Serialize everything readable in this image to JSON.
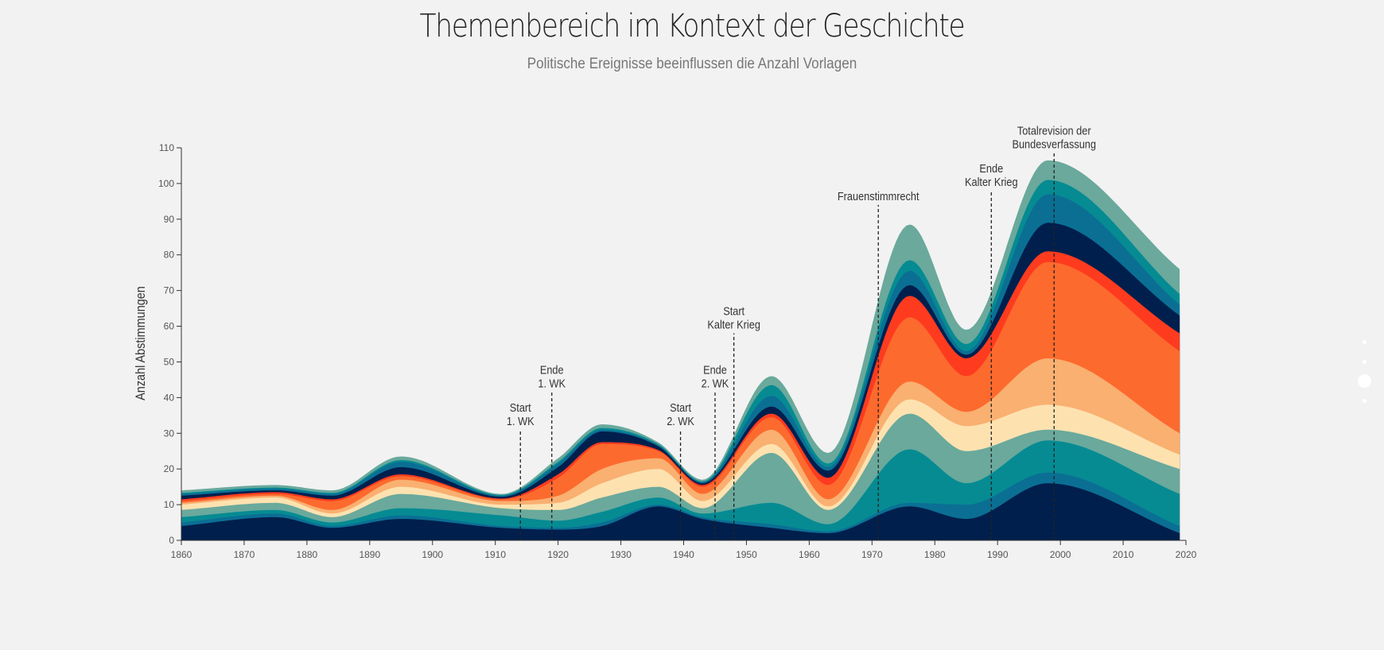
{
  "title": "Themenbereich im Kontext der Geschichte",
  "subtitle": "Politische Ereignisse beeinflussen die Anzahl Vorlagen",
  "chart_data": {
    "type": "area",
    "stacked": true,
    "smooth": true,
    "xlabel": "",
    "ylabel": "Anzahl Abstimmungen",
    "xlim": [
      1860,
      2020
    ],
    "ylim": [
      0,
      110
    ],
    "x_ticks": [
      1860,
      1870,
      1880,
      1890,
      1900,
      1910,
      1920,
      1930,
      1940,
      1950,
      1960,
      1970,
      1980,
      1990,
      2000,
      2010,
      2020
    ],
    "y_ticks": [
      0,
      10,
      20,
      30,
      40,
      50,
      60,
      70,
      80,
      90,
      100,
      110
    ],
    "grid": false,
    "legend": "none",
    "x": [
      1860,
      1875,
      1884,
      1895,
      1911,
      1920,
      1927,
      1936,
      1943,
      1954,
      1963,
      1976,
      1985,
      1998,
      2019
    ],
    "series": [
      {
        "color": "#001f4d",
        "values": [
          4,
          6.5,
          3.5,
          6,
          3.5,
          3,
          4,
          9.5,
          6,
          3.5,
          2,
          9.5,
          6,
          16,
          2
        ]
      },
      {
        "color": "#0b6f94",
        "values": [
          1,
          1,
          0.5,
          1,
          0.5,
          0.5,
          1,
          0.5,
          0.5,
          1,
          0.5,
          1,
          4,
          3,
          2
        ]
      },
      {
        "color": "#068b93",
        "values": [
          1.5,
          1,
          1,
          2,
          3,
          2,
          3,
          2,
          1,
          6,
          2,
          15,
          6,
          9,
          9
        ]
      },
      {
        "color": "#6aa99c",
        "values": [
          2,
          2,
          1.5,
          4,
          2,
          3,
          4,
          3,
          1.5,
          14,
          4,
          10,
          9,
          3,
          7
        ]
      },
      {
        "color": "#fde2b0",
        "values": [
          1.5,
          1.5,
          1,
          2,
          1,
          2,
          4,
          5,
          2,
          2.5,
          1,
          4,
          7,
          7,
          4
        ]
      },
      {
        "color": "#f9b071",
        "values": [
          0.5,
          0.5,
          1,
          2,
          1,
          2,
          4,
          3,
          2,
          4,
          2,
          5,
          4,
          13,
          6
        ]
      },
      {
        "color": "#fd6a2e",
        "values": [
          0.5,
          0.5,
          2.5,
          1,
          0.5,
          5,
          7,
          2,
          2,
          3.5,
          4,
          18,
          10,
          27,
          23
        ]
      },
      {
        "color": "#fe3b1e",
        "values": [
          0.5,
          0.5,
          0.5,
          0.5,
          0.2,
          1,
          0.5,
          0.3,
          0.5,
          1,
          2,
          6,
          5,
          3,
          5
        ]
      },
      {
        "color": "#001f4d",
        "values": [
          1,
          0.5,
          1,
          2,
          0.5,
          2,
          3,
          1,
          0.5,
          2,
          2,
          3,
          1,
          8,
          5
        ]
      },
      {
        "color": "#0b6f94",
        "values": [
          0.5,
          0.5,
          0.5,
          1.5,
          0.3,
          1,
          0.5,
          0.3,
          0.3,
          3,
          1,
          4,
          1,
          8,
          3
        ]
      },
      {
        "color": "#068b93",
        "values": [
          0.3,
          0.3,
          0.3,
          0.5,
          0.2,
          0.5,
          0.5,
          0.3,
          0.2,
          3,
          1,
          3,
          2,
          4,
          3
        ]
      },
      {
        "color": "#6aa99c",
        "values": [
          0.7,
          0.7,
          0.7,
          1,
          0.3,
          1,
          1,
          0.5,
          0.5,
          2.5,
          3,
          10,
          4,
          5.5,
          7
        ]
      }
    ],
    "annotations": [
      {
        "x": 1914,
        "y": 31,
        "lines": [
          "Start",
          "1. WK"
        ]
      },
      {
        "x": 1919,
        "y": 41.5,
        "lines": [
          "Ende",
          "1. WK"
        ]
      },
      {
        "x": 1939.5,
        "y": 31,
        "lines": [
          "Start",
          "2. WK"
        ]
      },
      {
        "x": 1945,
        "y": 41.5,
        "lines": [
          "Ende",
          "2. WK"
        ]
      },
      {
        "x": 1948,
        "y": 58,
        "lines": [
          "Start",
          "Kalter Krieg"
        ]
      },
      {
        "x": 1971,
        "y": 94,
        "lines": [
          "Frauenstimmrecht"
        ]
      },
      {
        "x": 1989,
        "y": 98,
        "lines": [
          "Ende",
          "Kalter Krieg"
        ]
      },
      {
        "x": 1999,
        "y": 108.5,
        "lines": [
          "Totalrevision der",
          "Bundesverfassung"
        ]
      }
    ]
  }
}
